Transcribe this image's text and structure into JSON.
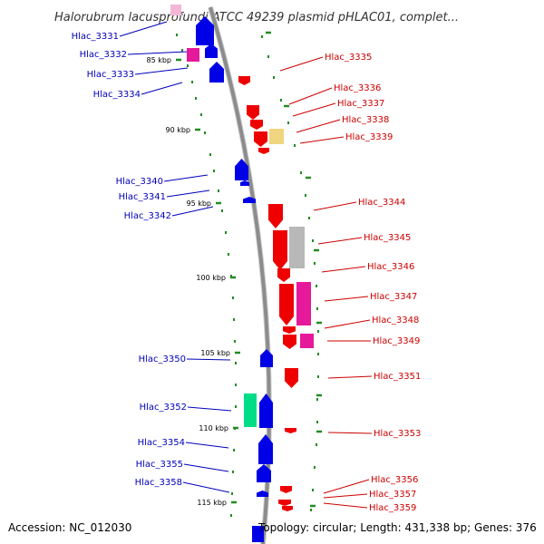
{
  "title": "Halorubrum lacusprofundi ATCC 49239 plasmid pHLAC01, complet...",
  "footer": {
    "accession": "Accession: NC_012030",
    "summary": "Topology: circular; Length: 431,338 bp; Genes: 376"
  },
  "colors": {
    "minus_label": "#0000bb",
    "plus_label": "#cc0000",
    "backbone": "#8c8c8c",
    "tick": "#228b22"
  },
  "kbp_ticks": [
    "85 kbp",
    "90 kbp",
    "95 kbp",
    "100 kbp",
    "105 kbp",
    "110 kbp",
    "115 kbp"
  ],
  "genes_left": [
    "Hlac_3331",
    "Hlac_3332",
    "Hlac_3333",
    "Hlac_3334",
    "Hlac_3340",
    "Hlac_3341",
    "Hlac_3342",
    "Hlac_3350",
    "Hlac_3352",
    "Hlac_3354",
    "Hlac_3355",
    "Hlac_3358"
  ],
  "genes_right": [
    "Hlac_3335",
    "Hlac_3336",
    "Hlac_3337",
    "Hlac_3338",
    "Hlac_3339",
    "Hlac_3344",
    "Hlac_3345",
    "Hlac_3346",
    "Hlac_3347",
    "Hlac_3348",
    "Hlac_3349",
    "Hlac_3351",
    "Hlac_3353",
    "Hlac_3356",
    "Hlac_3357",
    "Hlac_3359"
  ]
}
